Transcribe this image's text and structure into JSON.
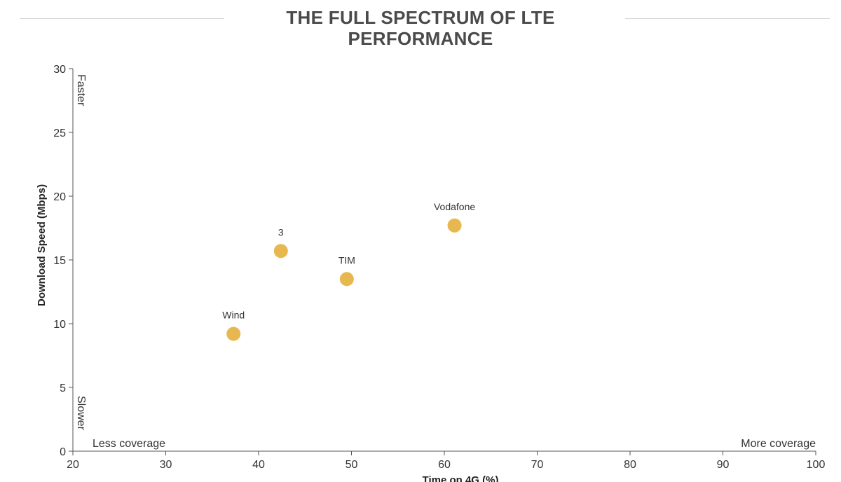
{
  "chart_data": {
    "type": "scatter",
    "title": "THE FULL SPECTRUM OF LTE PERFORMANCE",
    "xlabel": "Time on 4G (%)",
    "ylabel": "Download Speed (Mbps)",
    "xlim": [
      20,
      100
    ],
    "ylim": [
      0,
      30
    ],
    "x_ticks": [
      20,
      30,
      40,
      50,
      60,
      70,
      80,
      90,
      100
    ],
    "y_ticks": [
      0,
      5,
      10,
      15,
      20,
      25,
      30
    ],
    "grid": false,
    "point_color": "#E8B850",
    "points": [
      {
        "label": "Wind",
        "x": 37.3,
        "y": 9.2
      },
      {
        "label": "3",
        "x": 42.4,
        "y": 15.7
      },
      {
        "label": "TIM",
        "x": 49.5,
        "y": 13.5
      },
      {
        "label": "Vodafone",
        "x": 61.1,
        "y": 17.7
      }
    ],
    "annotations": {
      "y_high": "Faster",
      "y_low": "Slower",
      "x_low": "Less coverage",
      "x_high": "More coverage"
    }
  }
}
